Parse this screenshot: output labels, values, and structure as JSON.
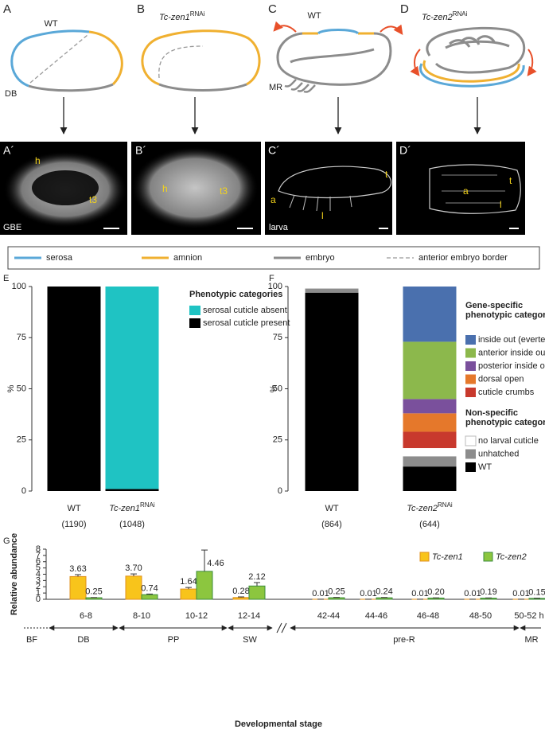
{
  "panels": {
    "A": {
      "label": "A",
      "title": "WT",
      "stage": "DB"
    },
    "B": {
      "label": "B",
      "title": {
        "name": "Tc-zen1",
        "sup": "RNAi"
      }
    },
    "C": {
      "label": "C",
      "title": "WT",
      "stage": "MR"
    },
    "D": {
      "label": "D",
      "title": {
        "name": "Tc-zen2",
        "sup": "RNAi"
      }
    },
    "A2": {
      "label": "A´",
      "annotations": [
        "h",
        "t3"
      ],
      "stage": "GBE"
    },
    "B2": {
      "label": "B´",
      "annotations": [
        "h",
        "t3"
      ]
    },
    "C2": {
      "label": "C´",
      "annotations": [
        "a",
        "t",
        "l"
      ],
      "stage": "larva"
    },
    "D2": {
      "label": "D´",
      "annotations": [
        "a",
        "t",
        "l"
      ]
    }
  },
  "legend": [
    "serosa",
    "amnion",
    "embryo",
    "anterior embryo border"
  ],
  "chart_data": [
    {
      "type": "stacked-bar",
      "label": "E",
      "ylabel": "%",
      "categories": [
        "WT",
        "Tc-zen1"
      ],
      "category_sup": [
        null,
        "RNAi"
      ],
      "counts": [
        "(1190)",
        "(1048)"
      ],
      "ylim": [
        0,
        100
      ],
      "yticks": [
        0,
        25,
        50,
        75,
        100
      ],
      "legend_title": "Phenotypic categories",
      "series": [
        {
          "name": "serosal cuticle absent",
          "color": "#1fc3c3",
          "values": [
            0,
            99
          ]
        },
        {
          "name": "serosal cuticle present",
          "color": "#000000",
          "values": [
            100,
            1
          ]
        }
      ]
    },
    {
      "type": "stacked-bar",
      "label": "F",
      "ylabel": "%",
      "categories": [
        "WT",
        "Tc-zen2"
      ],
      "category_sup": [
        null,
        "RNAi"
      ],
      "counts": [
        "(864)",
        "(644)"
      ],
      "ylim": [
        0,
        100
      ],
      "yticks": [
        0,
        25,
        50,
        75,
        100
      ],
      "legend_groups": [
        [
          "Gene-specific",
          "phenotypic categories"
        ],
        [
          "Non-specific",
          "phenotypic categories"
        ]
      ],
      "series": [
        {
          "name": "inside out (everted)",
          "color": "#4a70ae",
          "group": 0,
          "values": [
            0,
            27
          ]
        },
        {
          "name": "anterior inside out",
          "color": "#8cb84c",
          "group": 0,
          "values": [
            0,
            28
          ]
        },
        {
          "name": "posterior inside out",
          "color": "#7a509c",
          "group": 0,
          "values": [
            0,
            7
          ]
        },
        {
          "name": "dorsal open",
          "color": "#e5782b",
          "group": 0,
          "values": [
            0,
            9
          ]
        },
        {
          "name": "cuticle crumbs",
          "color": "#c8392d",
          "group": 0,
          "values": [
            0,
            8
          ]
        },
        {
          "name": "no larval cuticle",
          "color": "#ffffff",
          "group": 1,
          "values": [
            0,
            4
          ]
        },
        {
          "name": "unhatched",
          "color": "#8c8c8c",
          "group": 1,
          "values": [
            2,
            5
          ]
        },
        {
          "name": "WT",
          "color": "#000000",
          "group": 1,
          "values": [
            97,
            12
          ]
        }
      ]
    },
    {
      "type": "grouped-bar",
      "label": "G",
      "ylabel": "Relative abundance",
      "xlabel": "Developmental stage",
      "categories": [
        "6-8",
        "8-10",
        "10-12",
        "12-14",
        "42-44",
        "44-46",
        "46-48",
        "48-50",
        "50-52 h"
      ],
      "stages": [
        "BF",
        "DB",
        "PP",
        "SW",
        "pre-R",
        "MR"
      ],
      "ylim": [
        0,
        8
      ],
      "yticks": [
        0,
        1,
        2,
        3,
        4,
        5,
        6,
        7,
        8
      ],
      "series": [
        {
          "name": "Tc-zen1",
          "color": "#f8c41b",
          "edge": "#e0901c",
          "values": [
            3.63,
            3.7,
            1.64,
            0.28,
            0.01,
            0.01,
            0.01,
            0.01,
            0.01
          ],
          "value_labels": [
            "3.63",
            "3.70",
            "1.64",
            "0.28",
            "0.01",
            "0.01",
            "0.01",
            "0.01",
            "0.01"
          ],
          "errors": [
            0.3,
            0.35,
            0.25,
            0.1,
            0,
            0,
            0,
            0,
            0
          ]
        },
        {
          "name": "Tc-zen2",
          "color": "#8cc63f",
          "edge": "#3c8c3c",
          "values": [
            0.25,
            0.74,
            4.46,
            2.12,
            0.25,
            0.24,
            0.2,
            0.19,
            0.15
          ],
          "value_labels": [
            "0.25",
            "0.74",
            "4.46",
            "2.12",
            "0.25",
            "0.24",
            "0.20",
            "0.19",
            "0.15"
          ],
          "errors": [
            0.03,
            0.1,
            3.4,
            0.55,
            0.05,
            0.05,
            0.03,
            0.03,
            0.03
          ]
        }
      ]
    }
  ]
}
